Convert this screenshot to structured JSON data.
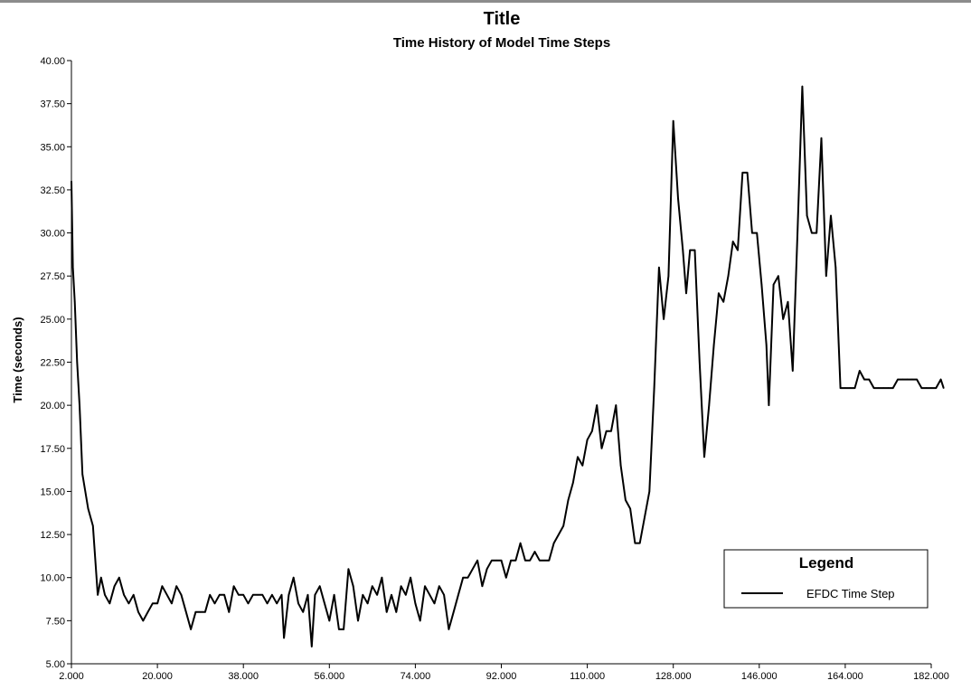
{
  "chart_data": {
    "type": "line",
    "title": "Title",
    "subtitle": "Time History of Model Time Steps",
    "xlabel": "",
    "ylabel": "Time (seconds)",
    "xlim": [
      2,
      182
    ],
    "ylim": [
      5,
      40
    ],
    "x_ticks": [
      "2.000",
      "20.000",
      "38.000",
      "56.000",
      "74.000",
      "92.000",
      "110.000",
      "128.000",
      "146.000",
      "164.000",
      "182.000"
    ],
    "y_ticks": [
      "5.00",
      "7.50",
      "10.00",
      "12.50",
      "15.00",
      "17.50",
      "20.00",
      "22.50",
      "25.00",
      "27.50",
      "30.00",
      "32.50",
      "35.00",
      "37.50",
      "40.00"
    ],
    "grid": false,
    "legend": {
      "title": "Legend",
      "position": "bottom-right"
    },
    "series": [
      {
        "name": "EFDC Time Step",
        "color": "#000000",
        "points": [
          [
            2.0,
            33.0
          ],
          [
            2.3,
            28.0
          ],
          [
            2.7,
            26.0
          ],
          [
            3.2,
            22.5
          ],
          [
            3.7,
            20.0
          ],
          [
            4.3,
            16.0
          ],
          [
            5.5,
            14.0
          ],
          [
            6.5,
            13.0
          ],
          [
            7.5,
            9.0
          ],
          [
            8.2,
            10.0
          ],
          [
            9.0,
            9.0
          ],
          [
            10.0,
            8.5
          ],
          [
            11.0,
            9.5
          ],
          [
            12.0,
            10.0
          ],
          [
            13.0,
            9.0
          ],
          [
            14.0,
            8.5
          ],
          [
            15.0,
            9.0
          ],
          [
            16.0,
            8.0
          ],
          [
            17.0,
            7.5
          ],
          [
            18.0,
            8.0
          ],
          [
            19.0,
            8.5
          ],
          [
            20.0,
            8.5
          ],
          [
            21.0,
            9.5
          ],
          [
            22.0,
            9.0
          ],
          [
            23.0,
            8.5
          ],
          [
            24.0,
            9.5
          ],
          [
            25.0,
            9.0
          ],
          [
            26.0,
            8.0
          ],
          [
            27.0,
            7.0
          ],
          [
            28.0,
            8.0
          ],
          [
            29.0,
            8.0
          ],
          [
            30.0,
            8.0
          ],
          [
            31.0,
            9.0
          ],
          [
            32.0,
            8.5
          ],
          [
            33.0,
            9.0
          ],
          [
            34.0,
            9.0
          ],
          [
            35.0,
            8.0
          ],
          [
            36.0,
            9.5
          ],
          [
            37.0,
            9.0
          ],
          [
            38.0,
            9.0
          ],
          [
            39.0,
            8.5
          ],
          [
            40.0,
            9.0
          ],
          [
            41.0,
            9.0
          ],
          [
            42.0,
            9.0
          ],
          [
            43.0,
            8.5
          ],
          [
            44.0,
            9.0
          ],
          [
            45.0,
            8.5
          ],
          [
            46.0,
            9.0
          ],
          [
            46.5,
            6.5
          ],
          [
            47.5,
            9.0
          ],
          [
            48.5,
            10.0
          ],
          [
            49.5,
            8.5
          ],
          [
            50.5,
            8.0
          ],
          [
            51.5,
            9.0
          ],
          [
            52.3,
            6.0
          ],
          [
            53.0,
            9.0
          ],
          [
            54.0,
            9.5
          ],
          [
            55.0,
            8.5
          ],
          [
            56.0,
            7.5
          ],
          [
            57.0,
            9.0
          ],
          [
            58.0,
            7.0
          ],
          [
            59.0,
            7.0
          ],
          [
            60.0,
            10.5
          ],
          [
            61.0,
            9.5
          ],
          [
            62.0,
            7.5
          ],
          [
            63.0,
            9.0
          ],
          [
            64.0,
            8.5
          ],
          [
            65.0,
            9.5
          ],
          [
            66.0,
            9.0
          ],
          [
            67.0,
            10.0
          ],
          [
            68.0,
            8.0
          ],
          [
            69.0,
            9.0
          ],
          [
            70.0,
            8.0
          ],
          [
            71.0,
            9.5
          ],
          [
            72.0,
            9.0
          ],
          [
            73.0,
            10.0
          ],
          [
            74.0,
            8.5
          ],
          [
            75.0,
            7.5
          ],
          [
            76.0,
            9.5
          ],
          [
            77.0,
            9.0
          ],
          [
            78.0,
            8.5
          ],
          [
            79.0,
            9.5
          ],
          [
            80.0,
            9.0
          ],
          [
            81.0,
            7.0
          ],
          [
            82.0,
            8.0
          ],
          [
            83.0,
            9.0
          ],
          [
            84.0,
            10.0
          ],
          [
            85.0,
            10.0
          ],
          [
            86.0,
            10.5
          ],
          [
            87.0,
            11.0
          ],
          [
            88.0,
            9.5
          ],
          [
            89.0,
            10.5
          ],
          [
            90.0,
            11.0
          ],
          [
            91.0,
            11.0
          ],
          [
            92.0,
            11.0
          ],
          [
            93.0,
            10.0
          ],
          [
            94.0,
            11.0
          ],
          [
            95.0,
            11.0
          ],
          [
            96.0,
            12.0
          ],
          [
            97.0,
            11.0
          ],
          [
            98.0,
            11.0
          ],
          [
            99.0,
            11.5
          ],
          [
            100.0,
            11.0
          ],
          [
            101.0,
            11.0
          ],
          [
            102.0,
            11.0
          ],
          [
            103.0,
            12.0
          ],
          [
            104.0,
            12.5
          ],
          [
            105.0,
            13.0
          ],
          [
            106.0,
            14.5
          ],
          [
            107.0,
            15.5
          ],
          [
            108.0,
            17.0
          ],
          [
            109.0,
            16.5
          ],
          [
            110.0,
            18.0
          ],
          [
            111.0,
            18.5
          ],
          [
            112.0,
            20.0
          ],
          [
            113.0,
            17.5
          ],
          [
            114.0,
            18.5
          ],
          [
            115.0,
            18.5
          ],
          [
            116.0,
            20.0
          ],
          [
            117.0,
            16.5
          ],
          [
            118.0,
            14.5
          ],
          [
            119.0,
            14.0
          ],
          [
            120.0,
            12.0
          ],
          [
            121.0,
            12.0
          ],
          [
            122.0,
            13.5
          ],
          [
            123.0,
            15.0
          ],
          [
            124.0,
            21.0
          ],
          [
            125.0,
            28.0
          ],
          [
            126.0,
            25.0
          ],
          [
            127.0,
            27.5
          ],
          [
            128.0,
            36.5
          ],
          [
            129.0,
            32.0
          ],
          [
            130.0,
            29.0
          ],
          [
            130.7,
            26.5
          ],
          [
            131.5,
            29.0
          ],
          [
            132.5,
            29.0
          ],
          [
            133.5,
            22.5
          ],
          [
            134.5,
            17.0
          ],
          [
            135.5,
            20.0
          ],
          [
            136.5,
            23.5
          ],
          [
            137.5,
            26.5
          ],
          [
            138.5,
            26.0
          ],
          [
            139.5,
            27.5
          ],
          [
            140.5,
            29.5
          ],
          [
            141.5,
            29.0
          ],
          [
            142.5,
            33.5
          ],
          [
            143.5,
            33.5
          ],
          [
            144.5,
            30.0
          ],
          [
            145.5,
            30.0
          ],
          [
            146.5,
            27.0
          ],
          [
            147.5,
            23.5
          ],
          [
            148.0,
            20.0
          ],
          [
            149.0,
            27.0
          ],
          [
            150.0,
            27.5
          ],
          [
            151.0,
            25.0
          ],
          [
            152.0,
            26.0
          ],
          [
            153.0,
            22.0
          ],
          [
            154.0,
            30.0
          ],
          [
            155.0,
            38.5
          ],
          [
            156.0,
            31.0
          ],
          [
            157.0,
            30.0
          ],
          [
            158.0,
            30.0
          ],
          [
            159.0,
            35.5
          ],
          [
            160.0,
            27.5
          ],
          [
            161.0,
            31.0
          ],
          [
            162.0,
            28.0
          ],
          [
            163.0,
            21.0
          ],
          [
            164.0,
            21.0
          ],
          [
            165.0,
            21.0
          ],
          [
            166.0,
            21.0
          ],
          [
            167.0,
            22.0
          ],
          [
            168.0,
            21.5
          ],
          [
            169.0,
            21.5
          ],
          [
            170.0,
            21.0
          ],
          [
            171.0,
            21.0
          ],
          [
            172.0,
            21.0
          ],
          [
            173.0,
            21.0
          ],
          [
            174.0,
            21.0
          ],
          [
            175.0,
            21.5
          ],
          [
            176.0,
            21.5
          ],
          [
            177.0,
            21.5
          ],
          [
            178.0,
            21.5
          ],
          [
            179.0,
            21.5
          ],
          [
            180.0,
            21.0
          ],
          [
            181.0,
            21.0
          ],
          [
            182.0,
            21.0
          ],
          [
            183.0,
            21.0
          ],
          [
            184.0,
            21.5
          ],
          [
            184.6,
            21.0
          ]
        ]
      }
    ]
  }
}
